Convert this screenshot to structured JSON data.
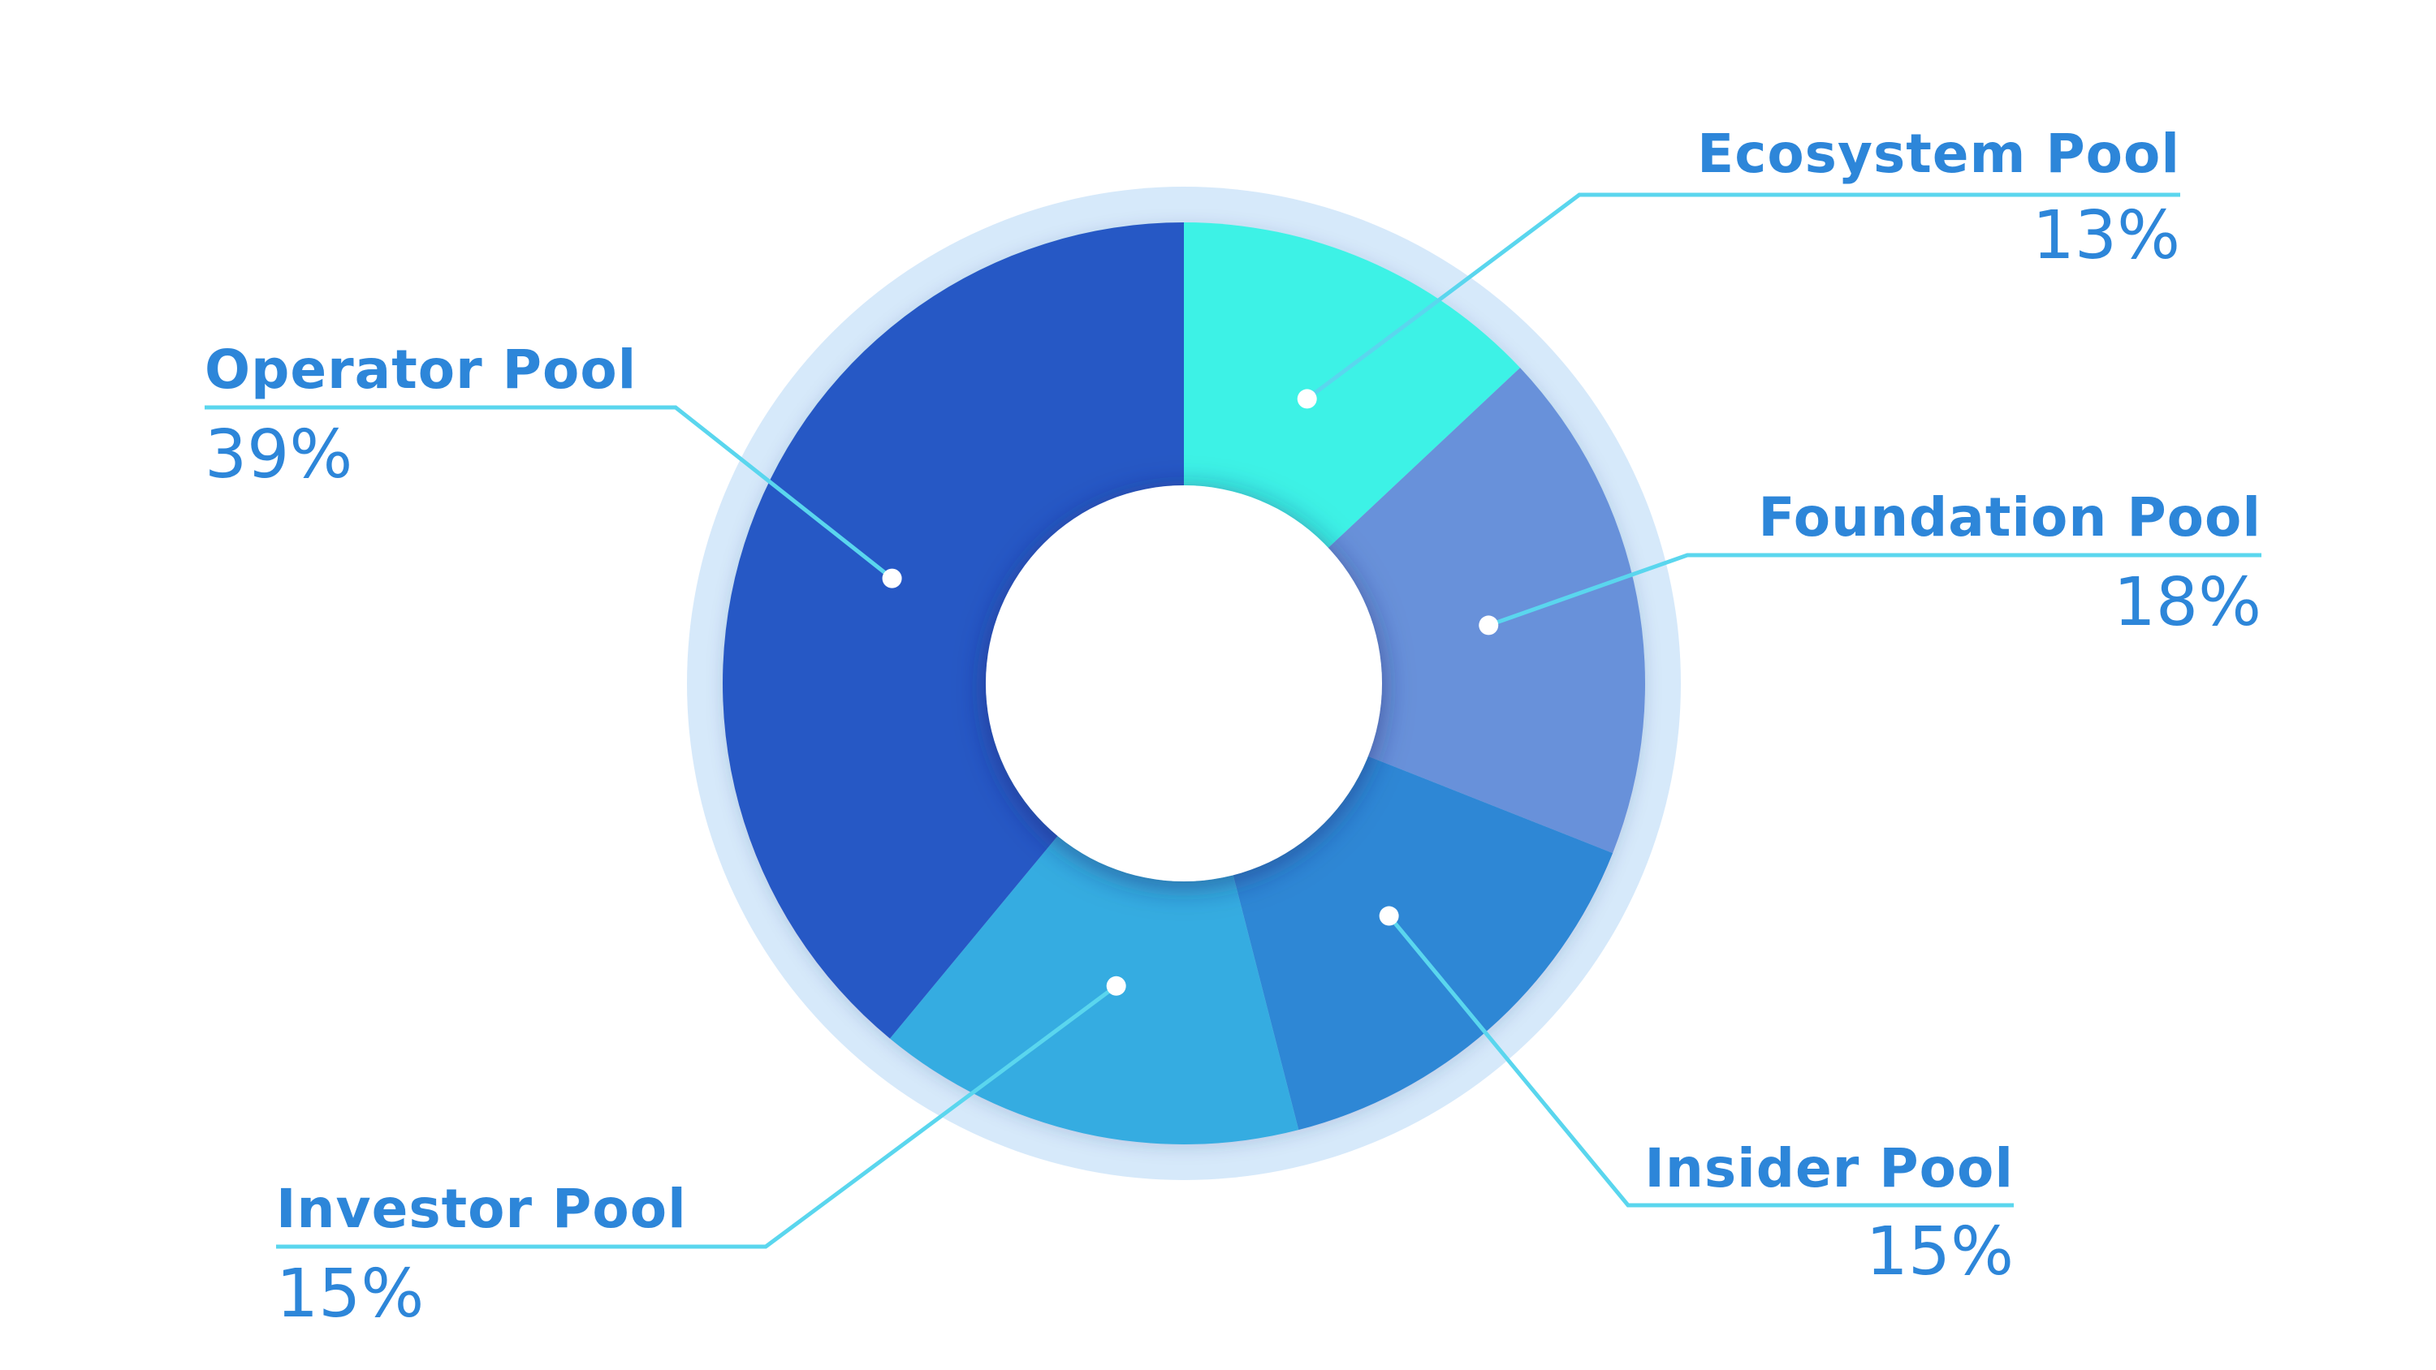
{
  "chart_data": {
    "type": "pie",
    "variant": "donut",
    "slices": [
      {
        "label": "Ecosystem Pool",
        "value": 13,
        "display": "13%",
        "color": "#3cf2e6"
      },
      {
        "label": "Foundation Pool",
        "value": 18,
        "display": "18%",
        "color": "#6791da"
      },
      {
        "label": "Insider Pool",
        "value": 15,
        "display": "15%",
        "color": "#2d87d5"
      },
      {
        "label": "Investor Pool",
        "value": 15,
        "display": "15%",
        "color": "#35ace1"
      },
      {
        "label": "Operator Pool",
        "value": 39,
        "display": "39%",
        "color": "#2858c5"
      }
    ],
    "colors": {
      "ring": "#d6e9fa",
      "leader_line": "#5ad6ee",
      "label_text": "#2d86d9",
      "background": "#ffffff"
    }
  }
}
